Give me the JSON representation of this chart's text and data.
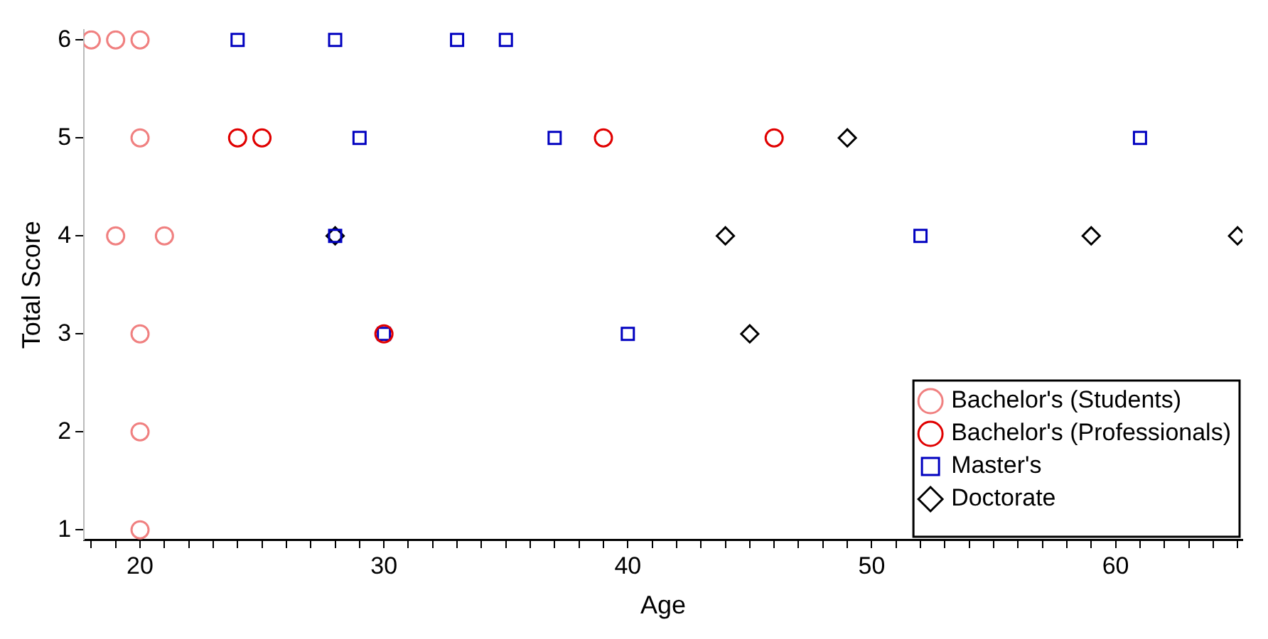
{
  "chart_data": {
    "type": "scatter",
    "xlabel": "Age",
    "ylabel": "Total Score",
    "xlim": [
      17.7,
      65.2
    ],
    "ylim": [
      0.9,
      6.1
    ],
    "xticks": [
      {
        "value": 18,
        "label": null
      },
      {
        "value": 19,
        "label": null
      },
      20,
      {
        "value": 21,
        "label": null
      },
      {
        "value": 22,
        "label": null
      },
      {
        "value": 23,
        "label": null
      },
      {
        "value": 24,
        "label": null
      },
      {
        "value": 25,
        "label": null
      },
      {
        "value": 26,
        "label": null
      },
      {
        "value": 27,
        "label": null
      },
      {
        "value": 28,
        "label": null
      },
      {
        "value": 29,
        "label": null
      },
      30,
      {
        "value": 31,
        "label": null
      },
      {
        "value": 32,
        "label": null
      },
      {
        "value": 33,
        "label": null
      },
      {
        "value": 34,
        "label": null
      },
      {
        "value": 35,
        "label": null
      },
      {
        "value": 36,
        "label": null
      },
      {
        "value": 37,
        "label": null
      },
      {
        "value": 38,
        "label": null
      },
      {
        "value": 39,
        "label": null
      },
      40,
      {
        "value": 41,
        "label": null
      },
      {
        "value": 42,
        "label": null
      },
      {
        "value": 43,
        "label": null
      },
      {
        "value": 44,
        "label": null
      },
      {
        "value": 45,
        "label": null
      },
      {
        "value": 46,
        "label": null
      },
      {
        "value": 47,
        "label": null
      },
      {
        "value": 48,
        "label": null
      },
      {
        "value": 49,
        "label": null
      },
      50,
      {
        "value": 51,
        "label": null
      },
      {
        "value": 52,
        "label": null
      },
      {
        "value": 53,
        "label": null
      },
      {
        "value": 54,
        "label": null
      },
      {
        "value": 55,
        "label": null
      },
      {
        "value": 56,
        "label": null
      },
      {
        "value": 57,
        "label": null
      },
      {
        "value": 58,
        "label": null
      },
      {
        "value": 59,
        "label": null
      },
      60,
      {
        "value": 61,
        "label": null
      },
      {
        "value": 62,
        "label": null
      },
      {
        "value": 63,
        "label": null
      },
      {
        "value": 64,
        "label": null
      },
      {
        "value": 65,
        "label": null
      }
    ],
    "yticks": [
      1,
      2,
      3,
      4,
      5,
      6
    ],
    "grid": false,
    "legend": "bottom right",
    "series": [
      {
        "name": "Bachelor's (Students)",
        "color": "#f08080",
        "marker": "circle",
        "x": [
          18,
          19,
          20,
          20,
          19,
          21,
          20,
          20,
          20
        ],
        "values": [
          6,
          6,
          6,
          5,
          4,
          4,
          3,
          2,
          1
        ]
      },
      {
        "name": "Bachelor's (Professionals)",
        "color": "#e00000",
        "marker": "circle",
        "x": [
          24,
          25,
          30,
          39,
          46
        ],
        "values": [
          5,
          5,
          3,
          5,
          5
        ]
      },
      {
        "name": "Master's",
        "color": "#0000c0",
        "marker": "square",
        "x": [
          24,
          28,
          33,
          35,
          29,
          37,
          28,
          30,
          40,
          52,
          61
        ],
        "values": [
          6,
          6,
          6,
          6,
          5,
          5,
          4,
          3,
          3,
          4,
          5
        ]
      },
      {
        "name": "Doctorate",
        "color": "#000000",
        "marker": "diamond",
        "x": [
          28,
          49,
          44,
          45,
          59,
          65
        ],
        "values": [
          4,
          5,
          4,
          3,
          4,
          4
        ]
      }
    ]
  }
}
